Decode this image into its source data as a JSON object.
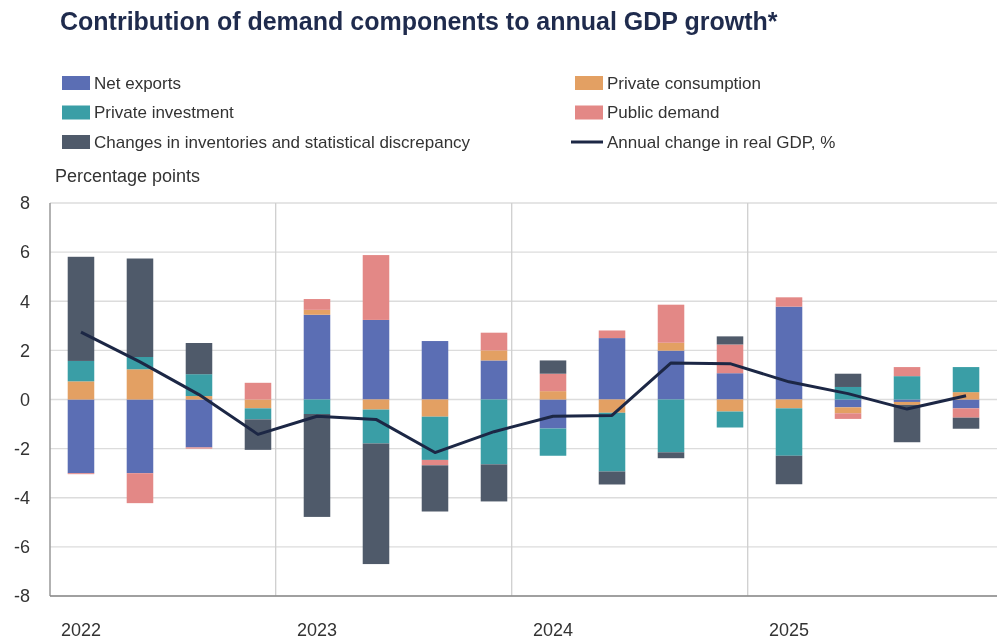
{
  "chart_data": {
    "type": "bar",
    "title": "Contribution of demand components to annual GDP growth*",
    "ylabel": "Percentage points",
    "categories": [
      "2022",
      null,
      null,
      null,
      "2023",
      null,
      null,
      null,
      "2024",
      null,
      null,
      null,
      "2025",
      null,
      null,
      null
    ],
    "stacked": true,
    "ylim": [
      -8,
      8
    ],
    "yticks": [
      -8,
      -6,
      -4,
      -2,
      0,
      2,
      4,
      6,
      8
    ],
    "grid": true,
    "legend": "top",
    "series": [
      {
        "name": "Net exports",
        "color": "#5b6eb4",
        "values": [
          -3.0,
          -3.0,
          -1.95,
          0,
          3.45,
          3.24,
          2.38,
          1.59,
          -1.18,
          2.5,
          1.99,
          1.07,
          3.78,
          -0.32,
          -0.1,
          -0.36
        ]
      },
      {
        "name": "Private consumption",
        "color": "#e3a063",
        "values": [
          0.74,
          1.23,
          0.14,
          -0.36,
          0.2,
          -0.41,
          -0.7,
          0.41,
          0.34,
          -0.54,
          0.32,
          -0.49,
          -0.36,
          -0.24,
          -0.12,
          0.3
        ]
      },
      {
        "name": "Private investment",
        "color": "#3a9ea6",
        "values": [
          0.83,
          0.5,
          0.89,
          -0.45,
          -0.59,
          -1.38,
          -1.76,
          -2.64,
          -1.11,
          -2.39,
          -2.15,
          -0.65,
          -1.93,
          0.51,
          0.95,
          1.02
        ]
      },
      {
        "name": "Public demand",
        "color": "#e38886",
        "values": [
          -0.04,
          -1.22,
          -0.05,
          0.68,
          0.44,
          2.64,
          -0.22,
          0.72,
          0.71,
          0.31,
          1.55,
          1.17,
          0.38,
          -0.23,
          0.37,
          -0.38
        ]
      },
      {
        "name": "Changes in inventories and statistical discrepancy",
        "color": "#4f5a6a",
        "values": [
          4.24,
          4.01,
          1.27,
          -1.24,
          -4.19,
          -4.91,
          -1.88,
          -1.51,
          0.54,
          -0.53,
          -0.24,
          0.33,
          -1.16,
          0.54,
          -1.52,
          -0.45
        ]
      },
      {
        "name": "Annual change in real GDP, %",
        "type": "line",
        "color": "#1c2745",
        "values": [
          2.74,
          1.53,
          0.2,
          -1.42,
          -0.68,
          -0.81,
          -2.16,
          -1.31,
          -0.68,
          -0.65,
          1.49,
          1.46,
          0.72,
          0.24,
          -0.39,
          0.15
        ]
      }
    ]
  }
}
